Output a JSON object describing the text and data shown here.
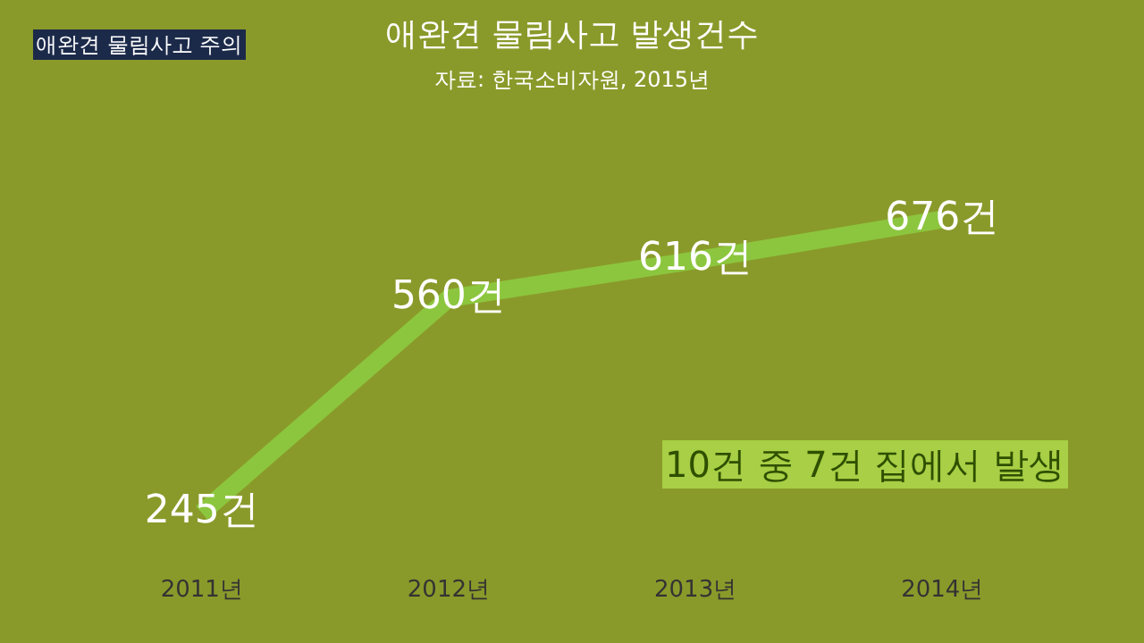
{
  "chart_data": {
    "type": "line",
    "title": "애완견 물림사고 발생건수",
    "subtitle": "자료: 한국소비자원, 2015년",
    "categories": [
      "2011년",
      "2012년",
      "2013년",
      "2014년"
    ],
    "values": [
      245,
      560,
      616,
      676
    ],
    "value_labels": [
      "245건",
      "560건",
      "616건",
      "676건"
    ],
    "color": "#8cc63e",
    "marker": "none",
    "grid": false,
    "annotations": [
      "10건 중 7건 집에서 발생",
      "애완견 물림사고 주의"
    ]
  }
}
